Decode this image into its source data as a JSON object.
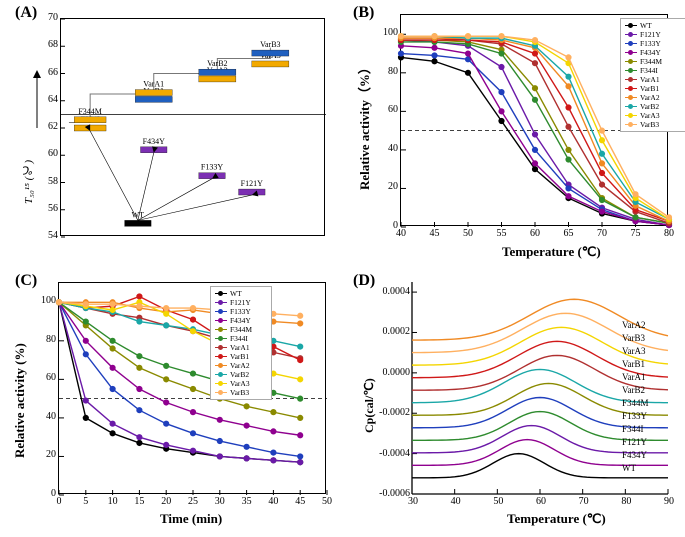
{
  "panels": {
    "A": {
      "label": "(A)"
    },
    "B": {
      "label": "(B)",
      "xlabel": "Temperature (℃)",
      "ylabel": "Relative activity（%）",
      "xlim": [
        40,
        80
      ],
      "xticks": [
        40,
        45,
        50,
        55,
        60,
        65,
        70,
        75,
        80
      ],
      "ylim": [
        0,
        110
      ],
      "yticks": [
        0,
        20,
        40,
        60,
        80,
        100
      ],
      "ref_y": 50
    },
    "C": {
      "label": "(C)",
      "xlabel": "Time (min)",
      "ylabel": "Relative activity (%)",
      "xlim": [
        0,
        50
      ],
      "xticks": [
        0,
        5,
        10,
        15,
        20,
        25,
        30,
        35,
        40,
        45,
        50
      ],
      "ylim": [
        0,
        110
      ],
      "yticks": [
        0,
        20,
        40,
        60,
        80,
        100
      ],
      "ref_y": 50
    },
    "D": {
      "label": "(D)",
      "xlabel": "Temperature (℃)",
      "ylabel": "Cp(cal/℃)",
      "xlim": [
        30,
        90
      ],
      "xticks": [
        30,
        40,
        50,
        60,
        70,
        80,
        90
      ],
      "ylim": [
        -0.0006,
        0.00045
      ],
      "yticks": [
        -0.0006,
        -0.0004,
        -0.0002,
        0.0,
        0.0002,
        0.0004
      ]
    }
  },
  "A": {
    "ylabel": "T₅₀¹⁵ (℃)",
    "ylim": [
      54,
      70
    ],
    "yticks": [
      54,
      56,
      58,
      60,
      62,
      64,
      66,
      68,
      70
    ],
    "bars": [
      {
        "name": "WT",
        "color": "#000000",
        "y": 55,
        "x1": 0.24,
        "x2": 0.34
      },
      {
        "name": "F121Y",
        "color": "#7c2fb3",
        "y": 57.3,
        "x1": 0.67,
        "x2": 0.77
      },
      {
        "name": "F133Y",
        "color": "#7c2fb3",
        "y": 58.5,
        "x1": 0.52,
        "x2": 0.62
      },
      {
        "name": "F434Y",
        "color": "#7c2fb3",
        "y": 60.4,
        "x1": 0.3,
        "x2": 0.4
      },
      {
        "name": "F344I",
        "color": "#f2a900",
        "y": 62.0,
        "x1": 0.05,
        "x2": 0.17
      },
      {
        "name": "F344M",
        "color": "#f2a900",
        "y": 62.6,
        "x1": 0.05,
        "x2": 0.17
      },
      {
        "name": "VarB1",
        "color": "#1f5fbf",
        "y": 64.1,
        "x1": 0.28,
        "x2": 0.42
      },
      {
        "name": "VarA1",
        "color": "#f2a900",
        "y": 64.6,
        "x1": 0.28,
        "x2": 0.42
      },
      {
        "name": "VarA2",
        "color": "#f2a900",
        "y": 65.6,
        "x1": 0.52,
        "x2": 0.66
      },
      {
        "name": "VarB2",
        "color": "#1f5fbf",
        "y": 66.1,
        "x1": 0.52,
        "x2": 0.66
      },
      {
        "name": "VarA3",
        "color": "#f2a900",
        "y": 66.7,
        "x1": 0.72,
        "x2": 0.86
      },
      {
        "name": "VarB3",
        "color": "#1f5fbf",
        "y": 67.5,
        "x1": 0.72,
        "x2": 0.86
      }
    ],
    "hline_y": 63.0,
    "arrows_from": "WT"
  },
  "series_order": [
    "WT",
    "F121Y",
    "F133Y",
    "F434Y",
    "F344M",
    "F344I",
    "VarA1",
    "VarB1",
    "VarA2",
    "VarB2",
    "VarA3",
    "VarB3"
  ],
  "series_colors": {
    "WT": "#000000",
    "F121Y": "#6b1aa8",
    "F133Y": "#1f3fbd",
    "F434Y": "#8f008f",
    "F344M": "#8a8a00",
    "F344I": "#2e8b2e",
    "VarA1": "#b03030",
    "VarB1": "#d01818",
    "VarA2": "#f08a24",
    "VarB2": "#1aa7a7",
    "VarA3": "#f4d500",
    "VarB3": "#ffb060"
  },
  "B": {
    "x": [
      40,
      45,
      50,
      55,
      60,
      65,
      70,
      75,
      80
    ],
    "data": {
      "WT": [
        88,
        86,
        80,
        55,
        30,
        15,
        7,
        3,
        1
      ],
      "F121Y": [
        97,
        96,
        94,
        83,
        48,
        22,
        10,
        4,
        1
      ],
      "F133Y": [
        90,
        89,
        87,
        70,
        40,
        20,
        9,
        3,
        1
      ],
      "F434Y": [
        94,
        93,
        90,
        60,
        33,
        16,
        8,
        3,
        1
      ],
      "F344M": [
        97,
        97,
        96,
        92,
        72,
        40,
        15,
        5,
        2
      ],
      "F344I": [
        96,
        96,
        95,
        90,
        66,
        35,
        14,
        5,
        2
      ],
      "VarA1": [
        98,
        98,
        97,
        95,
        85,
        52,
        22,
        8,
        2
      ],
      "VarB1": [
        97,
        97,
        97,
        96,
        90,
        62,
        28,
        9,
        3
      ],
      "VarA2": [
        98,
        98,
        98,
        97,
        93,
        73,
        33,
        11,
        3
      ],
      "VarB2": [
        99,
        99,
        98,
        98,
        94,
        78,
        38,
        13,
        4
      ],
      "VarA3": [
        99,
        99,
        99,
        99,
        96,
        85,
        45,
        15,
        4
      ],
      "VarB3": [
        99,
        99,
        99,
        99,
        97,
        88,
        50,
        17,
        5
      ]
    }
  },
  "C": {
    "x": [
      0,
      5,
      10,
      15,
      20,
      25,
      30,
      35,
      40,
      45
    ],
    "data": {
      "WT": [
        100,
        40,
        32,
        27,
        24,
        22,
        20,
        19,
        18,
        17
      ],
      "F121Y": [
        100,
        49,
        37,
        30,
        26,
        23,
        20,
        19,
        18,
        17
      ],
      "F133Y": [
        100,
        73,
        55,
        44,
        37,
        32,
        28,
        25,
        22,
        20
      ],
      "F434Y": [
        100,
        80,
        66,
        55,
        48,
        43,
        39,
        36,
        33,
        31
      ],
      "F344M": [
        100,
        88,
        76,
        66,
        60,
        55,
        50,
        46,
        43,
        40
      ],
      "F344I": [
        100,
        90,
        80,
        72,
        67,
        63,
        59,
        56,
        53,
        50
      ],
      "VarA1": [
        100,
        97,
        94,
        92,
        88,
        85,
        81,
        78,
        74,
        71
      ],
      "VarB1": [
        100,
        97,
        98,
        103,
        96,
        91,
        82,
        79,
        77,
        70
      ],
      "VarA2": [
        100,
        100,
        100,
        97,
        95,
        96,
        94,
        92,
        90,
        89
      ],
      "VarB2": [
        100,
        97,
        95,
        90,
        88,
        86,
        83,
        80,
        80,
        77
      ],
      "VarA3": [
        100,
        98,
        96,
        100,
        94,
        85,
        78,
        68,
        63,
        60
      ],
      "VarB3": [
        100,
        99,
        99,
        98,
        97,
        97,
        96,
        95,
        94,
        93
      ]
    }
  },
  "D": {
    "order": [
      "WT",
      "F434Y",
      "F121Y",
      "F344I",
      "F133Y",
      "F344M",
      "VarB2",
      "VarA1",
      "VarB1",
      "VarA3",
      "VarB3",
      "VarA2"
    ],
    "peak_x": {
      "WT": 55,
      "F434Y": 57,
      "F121Y": 58,
      "F344I": 60,
      "F133Y": 60,
      "F344M": 62,
      "VarB2": 60,
      "VarA1": 64,
      "VarB1": 64,
      "VarA3": 65,
      "VarB3": 66,
      "VarA2": 68
    },
    "baseline_start": -0.00052,
    "baseline_step": 6.2e-05,
    "peak_height": 0.00015
  }
}
